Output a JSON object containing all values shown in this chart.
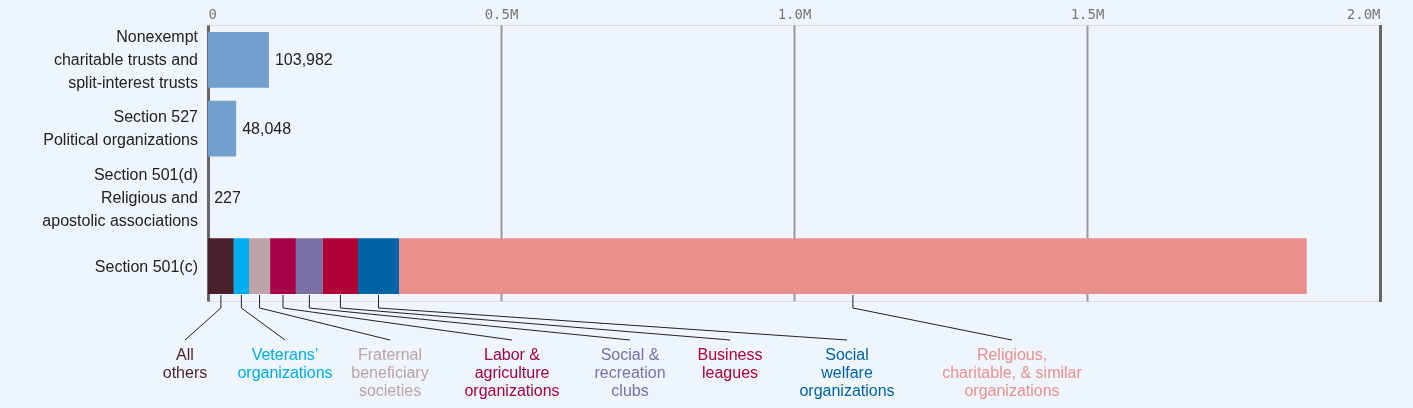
{
  "chart_data": {
    "type": "bar",
    "orientation": "horizontal",
    "stacked": true,
    "categories": [
      "Nonexempt\ncharitable trusts and\nsplit-interest trusts",
      "Section 527\nPolitical organizations",
      "Section 501(d)\nReligious and\napostolic associations",
      "Section 501(c)"
    ],
    "series": [
      {
        "color": "#729fcc",
        "values": [
          103982,
          48048,
          227,
          null
        ],
        "value_labels": [
          "103,982",
          "48,048",
          "227",
          null
        ]
      },
      {
        "name": "All\nothers",
        "color": "#4a1f2c",
        "values": [
          null,
          null,
          null,
          44000
        ]
      },
      {
        "name": "Veterans’\norganizations",
        "color": "#00aeef",
        "values": [
          null,
          null,
          null,
          26000
        ]
      },
      {
        "name": "Fraternal\nbeneficiary\nsocieties",
        "color": "#bba3a8",
        "values": [
          null,
          null,
          null,
          36000
        ]
      },
      {
        "name": "Labor &\nagriculture\norganizations",
        "color": "#a50048",
        "values": [
          null,
          null,
          null,
          44000
        ]
      },
      {
        "name": "Social &\nrecreation\nclubs",
        "color": "#7a70a6",
        "values": [
          null,
          null,
          null,
          46000
        ]
      },
      {
        "name": "Business\nleagues",
        "color": "#b00035",
        "values": [
          null,
          null,
          null,
          60000
        ]
      },
      {
        "name": "Social\nwelfare\norganizations",
        "color": "#0063a6",
        "values": [
          null,
          null,
          null,
          70000
        ]
      },
      {
        "name": "Religious,\ncharitable, & similar\norganizations",
        "color": "#e9908e",
        "values": [
          null,
          null,
          null,
          1549000
        ]
      }
    ],
    "xlim": [
      0,
      2000000
    ],
    "xticks": [
      0,
      {
        "value": 500000,
        "label": "0.5M"
      },
      {
        "value": 1000000,
        "label": "1.0M"
      },
      {
        "value": 1500000,
        "label": "1.5M"
      },
      {
        "value": 2000000,
        "label": "2.0M"
      }
    ],
    "grid": "x"
  }
}
